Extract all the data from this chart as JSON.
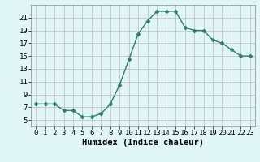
{
  "x": [
    0,
    1,
    2,
    3,
    4,
    5,
    6,
    7,
    8,
    9,
    10,
    11,
    12,
    13,
    14,
    15,
    16,
    17,
    18,
    19,
    20,
    21,
    22,
    23
  ],
  "y": [
    7.5,
    7.5,
    7.5,
    6.5,
    6.5,
    5.5,
    5.5,
    6.0,
    7.5,
    10.5,
    14.5,
    18.5,
    20.5,
    22.0,
    22.0,
    22.0,
    19.5,
    19.0,
    19.0,
    17.5,
    17.0,
    16.0,
    15.0,
    15.0
  ],
  "line_color": "#2e7d6e",
  "marker": "D",
  "marker_size": 2.5,
  "bg_color": "#e0f5f5",
  "grid_color": "#c9b8b8",
  "xlabel": "Humidex (Indice chaleur)",
  "xlim": [
    -0.5,
    23.5
  ],
  "ylim": [
    4,
    23
  ],
  "yticks": [
    5,
    7,
    9,
    11,
    13,
    15,
    17,
    19,
    21
  ],
  "xticks": [
    0,
    1,
    2,
    3,
    4,
    5,
    6,
    7,
    8,
    9,
    10,
    11,
    12,
    13,
    14,
    15,
    16,
    17,
    18,
    19,
    20,
    21,
    22,
    23
  ],
  "tick_labelsize": 6.5,
  "xlabel_fontsize": 7.5,
  "line_width": 1.0
}
